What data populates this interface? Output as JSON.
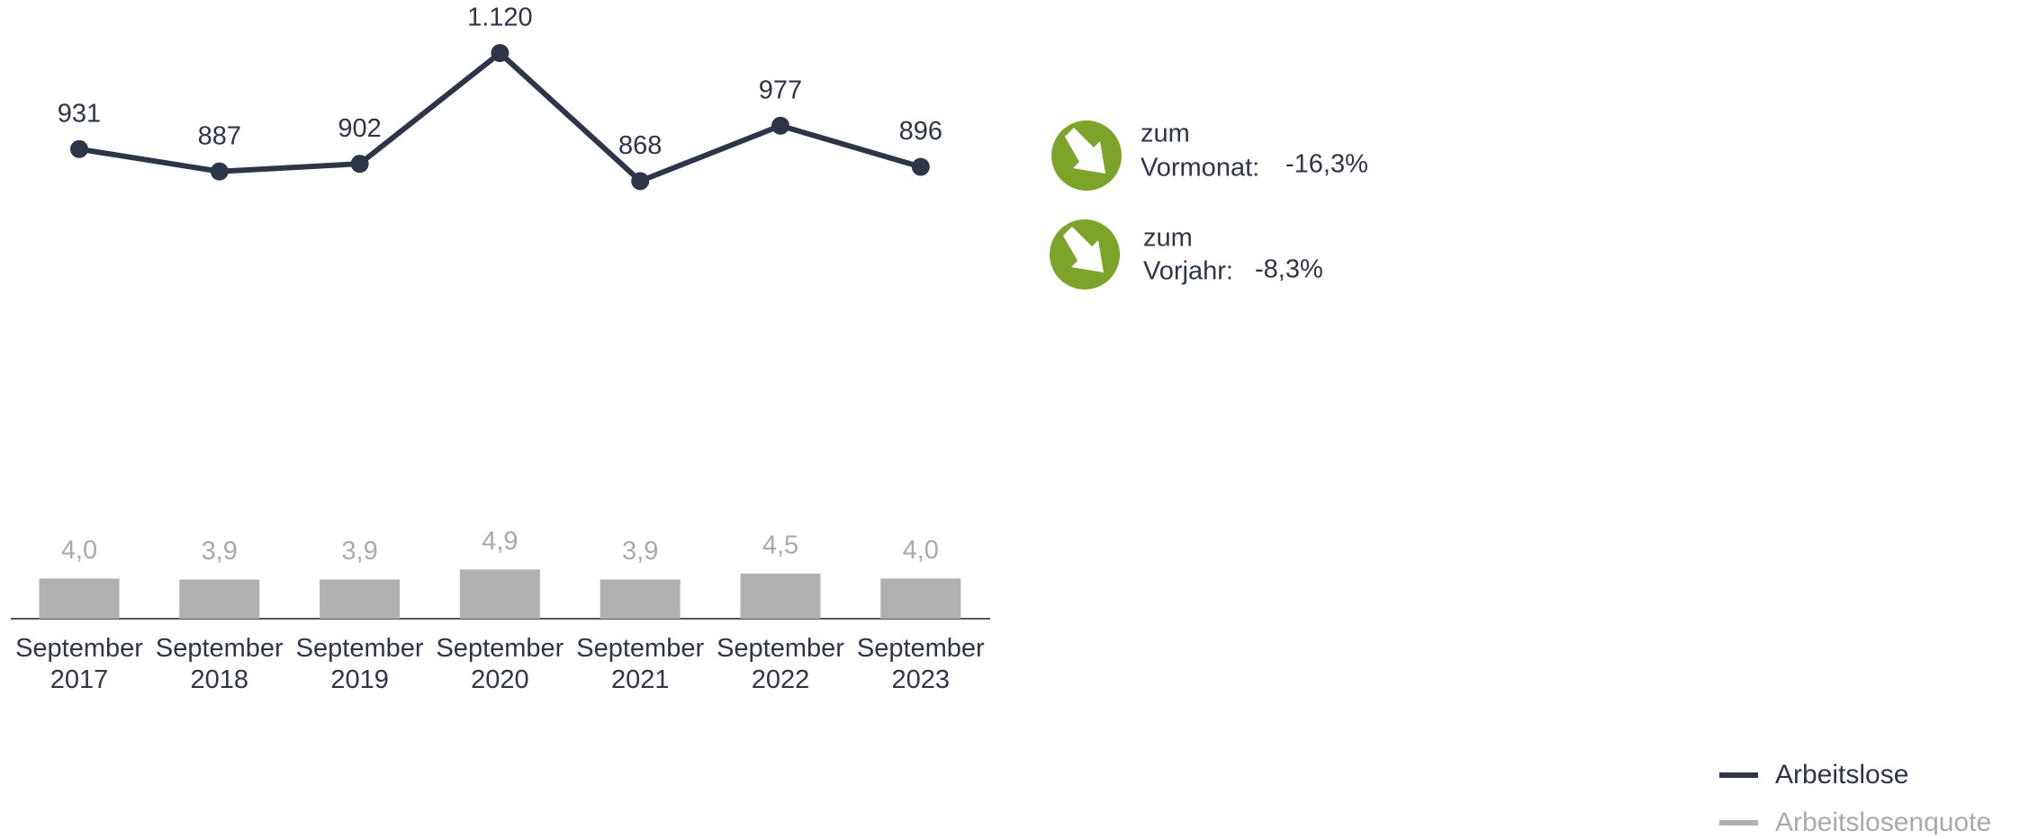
{
  "chart_data": {
    "type": "line-bar",
    "categories": [
      "September 2017",
      "September 2018",
      "September 2019",
      "September 2020",
      "September 2021",
      "September 2022",
      "September 2023"
    ],
    "series": [
      {
        "name": "Arbeitslose",
        "type": "line",
        "color": "#2d3648",
        "values": [
          931,
          887,
          902,
          1120,
          868,
          977,
          896
        ],
        "value_labels": [
          "931",
          "887",
          "902",
          "1.120",
          "868",
          "977",
          "896"
        ]
      },
      {
        "name": "Arbeitslosenquote",
        "type": "bar",
        "color": "#b0b0b0",
        "values": [
          4.0,
          3.9,
          3.9,
          4.9,
          3.9,
          4.5,
          4.0
        ],
        "value_labels": [
          "4,0",
          "3,9",
          "3,9",
          "4,9",
          "3,9",
          "4,5",
          "4,0"
        ]
      }
    ]
  },
  "indicators": [
    {
      "label": [
        "zum",
        "Vormonat:"
      ],
      "value": "-16,3%"
    },
    {
      "label": [
        "zum",
        "Vorjahr:"
      ],
      "value": "-8,3%"
    }
  ]
}
